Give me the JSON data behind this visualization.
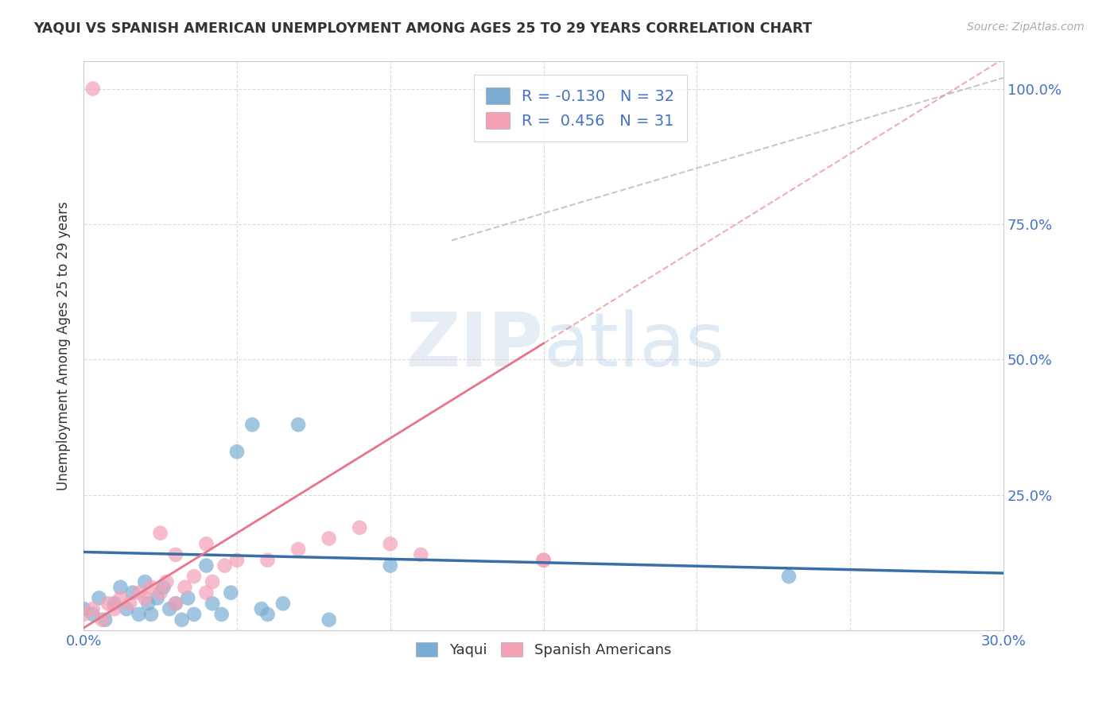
{
  "title": "YAQUI VS SPANISH AMERICAN UNEMPLOYMENT AMONG AGES 25 TO 29 YEARS CORRELATION CHART",
  "source": "Source: ZipAtlas.com",
  "ylabel": "Unemployment Among Ages 25 to 29 years",
  "xlim": [
    0.0,
    0.3
  ],
  "ylim": [
    0.0,
    1.05
  ],
  "xtick_positions": [
    0.0,
    0.05,
    0.1,
    0.15,
    0.2,
    0.25,
    0.3
  ],
  "xticklabels": [
    "0.0%",
    "",
    "",
    "",
    "",
    "",
    "30.0%"
  ],
  "ytick_positions": [
    0.0,
    0.25,
    0.5,
    0.75,
    1.0
  ],
  "yticklabels_right": [
    "",
    "25.0%",
    "50.0%",
    "75.0%",
    "100.0%"
  ],
  "yaqui_R": -0.13,
  "yaqui_N": 32,
  "spanish_R": 0.456,
  "spanish_N": 31,
  "watermark": "ZIPatlas",
  "yaqui_color": "#7BADD4",
  "spanish_color": "#F4A0B5",
  "yaqui_line_color": "#3A6EA8",
  "spanish_line_color": "#E8748A",
  "trend_line_color": "#C8C8C8",
  "grid_color": "#D8D8D8",
  "bg_color": "#FFFFFF",
  "yaqui_line_intercept": 0.145,
  "yaqui_line_slope": -0.13,
  "spanish_line_intercept": 0.005,
  "spanish_line_slope": 3.5,
  "gray_line_x": [
    0.12,
    0.3
  ],
  "gray_line_y": [
    0.72,
    1.02
  ],
  "yaqui_x": [
    0.0,
    0.003,
    0.005,
    0.007,
    0.01,
    0.012,
    0.014,
    0.016,
    0.018,
    0.02,
    0.021,
    0.022,
    0.024,
    0.026,
    0.028,
    0.03,
    0.032,
    0.034,
    0.036,
    0.04,
    0.042,
    0.045,
    0.048,
    0.05,
    0.055,
    0.058,
    0.06,
    0.065,
    0.07,
    0.08,
    0.1,
    0.23
  ],
  "yaqui_y": [
    0.04,
    0.03,
    0.06,
    0.02,
    0.05,
    0.08,
    0.04,
    0.07,
    0.03,
    0.09,
    0.05,
    0.03,
    0.06,
    0.08,
    0.04,
    0.05,
    0.02,
    0.06,
    0.03,
    0.12,
    0.05,
    0.03,
    0.07,
    0.33,
    0.38,
    0.04,
    0.03,
    0.05,
    0.38,
    0.02,
    0.12,
    0.1
  ],
  "spanish_x": [
    0.0,
    0.003,
    0.006,
    0.008,
    0.01,
    0.012,
    0.015,
    0.018,
    0.02,
    0.022,
    0.025,
    0.027,
    0.03,
    0.033,
    0.036,
    0.04,
    0.042,
    0.046,
    0.05,
    0.06,
    0.07,
    0.08,
    0.09,
    0.1,
    0.11,
    0.15,
    0.04,
    0.025,
    0.03,
    0.003,
    0.15
  ],
  "spanish_y": [
    0.03,
    0.04,
    0.02,
    0.05,
    0.04,
    0.06,
    0.05,
    0.07,
    0.06,
    0.08,
    0.07,
    0.09,
    0.05,
    0.08,
    0.1,
    0.07,
    0.09,
    0.12,
    0.13,
    0.13,
    0.15,
    0.17,
    0.19,
    0.16,
    0.14,
    0.13,
    0.16,
    0.18,
    0.14,
    1.0,
    0.13
  ]
}
